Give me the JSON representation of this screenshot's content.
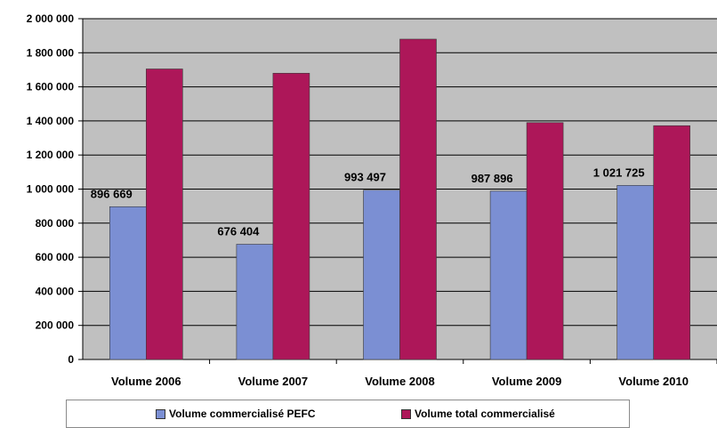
{
  "chart_data": {
    "type": "bar",
    "title": "",
    "categories": [
      "Volume 2006",
      "Volume 2007",
      "Volume 2008",
      "Volume 2009",
      "Volume 2010"
    ],
    "series": [
      {
        "name": "Volume commercialisé PEFC",
        "color": "#7b8fd3",
        "values": [
          896669,
          676404,
          993497,
          987896,
          1021725
        ],
        "labels": [
          "896 669",
          "676 404",
          "993 497",
          "987 896",
          "1 021 725"
        ]
      },
      {
        "name": "Volume total commercialisé",
        "color": "#ad1759",
        "values": [
          1705000,
          1680000,
          1880000,
          1390000,
          1372000
        ]
      }
    ],
    "ylim": [
      0,
      2000000
    ],
    "yticks": [
      0,
      200000,
      400000,
      600000,
      800000,
      1000000,
      1200000,
      1400000,
      1600000,
      1800000,
      2000000
    ],
    "ytick_labels": [
      "0",
      "200 000",
      "400 000",
      "600 000",
      "800 000",
      "1 000 000",
      "1 200 000",
      "1 400 000",
      "1 600 000",
      "1 800 000",
      "2 000 000"
    ],
    "grid": true,
    "plot_background": "#c0c0c0",
    "legend_position": "bottom"
  }
}
